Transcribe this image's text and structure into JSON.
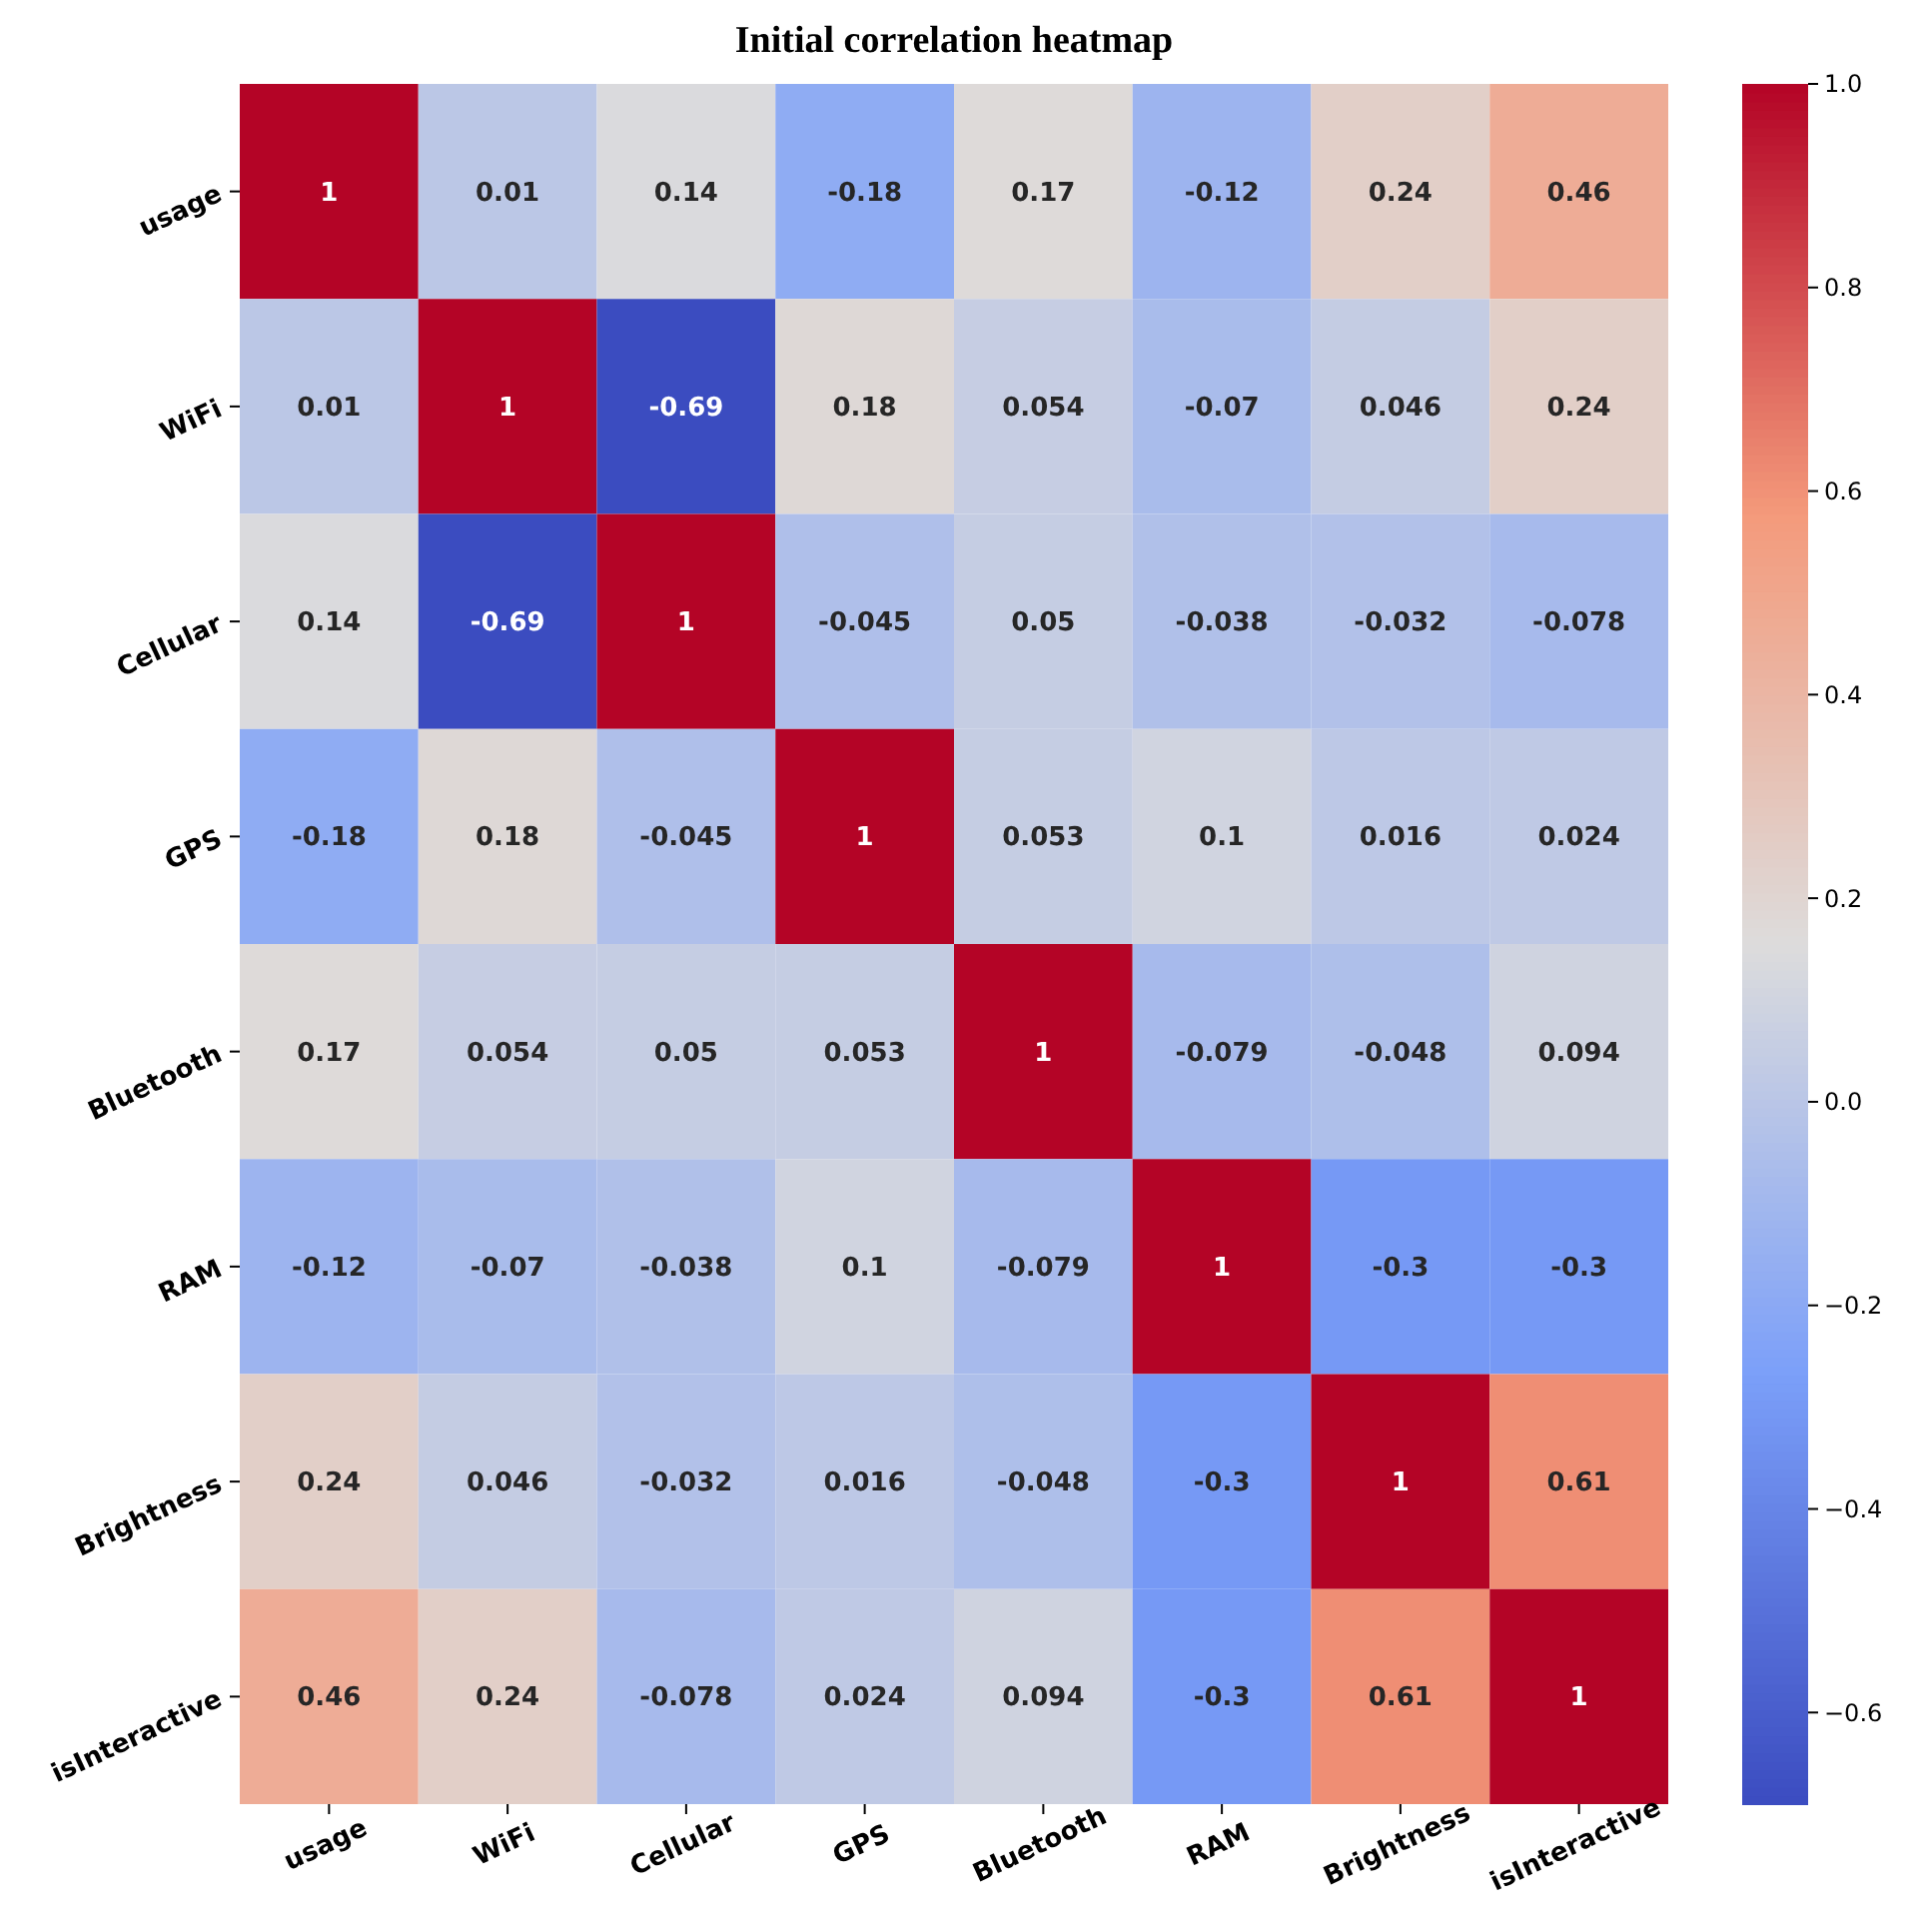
{
  "chart_data": {
    "type": "heatmap",
    "title": "Initial correlation heatmap",
    "categories": [
      "usage",
      "WiFi",
      "Cellular",
      "GPS",
      "Bluetooth",
      "RAM",
      "Brightness",
      "isInteractive"
    ],
    "y_categories": [
      "usage",
      "WiFi",
      "Cellular",
      "GPS",
      "Bluetooth",
      "RAM",
      "Brightness",
      "isInteractive"
    ],
    "cells": [
      [
        1,
        0.01,
        0.14,
        -0.18,
        0.17,
        -0.12,
        0.24,
        0.46
      ],
      [
        0.01,
        1,
        -0.69,
        0.18,
        0.054,
        -0.07,
        0.046,
        0.24
      ],
      [
        0.14,
        -0.69,
        1,
        -0.045,
        0.05,
        -0.038,
        -0.032,
        -0.078
      ],
      [
        -0.18,
        0.18,
        -0.045,
        1,
        0.053,
        0.1,
        0.016,
        0.024
      ],
      [
        0.17,
        0.054,
        0.05,
        0.053,
        1,
        -0.079,
        -0.048,
        0.094
      ],
      [
        -0.12,
        -0.07,
        -0.038,
        0.1,
        -0.079,
        1,
        -0.3,
        -0.3
      ],
      [
        0.24,
        0.046,
        -0.032,
        0.016,
        -0.048,
        -0.3,
        1,
        0.61
      ],
      [
        0.46,
        0.24,
        -0.078,
        0.024,
        0.094,
        -0.3,
        0.61,
        1
      ]
    ],
    "data_labels": true,
    "clim": [
      -0.69,
      1
    ],
    "cticks": [
      {
        "value": -0.6,
        "label": "−0.6"
      },
      {
        "value": -0.4,
        "label": "−0.4"
      },
      {
        "value": -0.2,
        "label": "−0.2"
      },
      {
        "value": 0,
        "label": "0.0"
      },
      {
        "value": 0.2,
        "label": "0.2"
      },
      {
        "value": 0.4,
        "label": "0.4"
      },
      {
        "value": 0.6,
        "label": "0.6"
      },
      {
        "value": 0.8,
        "label": "0.8"
      },
      {
        "value": 1,
        "label": "1.0"
      }
    ]
  }
}
